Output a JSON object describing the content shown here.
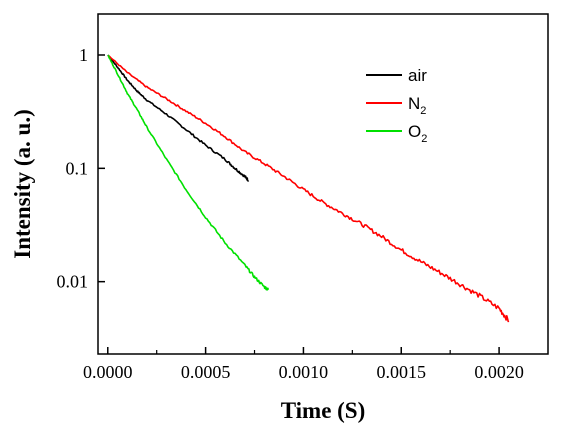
{
  "chart_data": {
    "type": "line",
    "title": "",
    "xlabel": "Time (S)",
    "ylabel": "Intensity (a. u.)",
    "x_scale": "linear",
    "y_scale": "log",
    "xlim": [
      -5e-05,
      0.00225
    ],
    "ylim": [
      0.0023,
      2.3
    ],
    "grid": false,
    "legend_position": "top-right",
    "x_ticks": [
      "0.0000",
      "0.0005",
      "0.0010",
      "0.0015",
      "0.0020"
    ],
    "x_tick_values": [
      0,
      0.0005,
      0.001,
      0.0015,
      0.002
    ],
    "y_ticks": [
      "0.01",
      "0.1",
      "1"
    ],
    "y_tick_values": [
      0.01,
      0.1,
      1
    ],
    "series": [
      {
        "name": "air",
        "name_subscript": "",
        "color": "#000000",
        "x": [
          0,
          5e-05,
          0.0001,
          0.00015,
          0.0002,
          0.0003,
          0.0004,
          0.0005,
          0.0006,
          0.00065,
          0.0007,
          0.00072
        ],
        "y": [
          1.0,
          0.78,
          0.6,
          0.48,
          0.4,
          0.3,
          0.22,
          0.16,
          0.12,
          0.1,
          0.085,
          0.078
        ]
      },
      {
        "name": "N",
        "name_subscript": "2",
        "color": "#ff0000",
        "x": [
          0,
          0.0001,
          0.0002,
          0.0003,
          0.0004,
          0.0005,
          0.0006,
          0.0007,
          0.0008,
          0.0009,
          0.001,
          0.0011,
          0.0012,
          0.0013,
          0.0014,
          0.0015,
          0.0016,
          0.0017,
          0.0018,
          0.0019,
          0.002,
          0.00205
        ],
        "y": [
          1.0,
          0.7,
          0.52,
          0.41,
          0.32,
          0.25,
          0.19,
          0.14,
          0.11,
          0.085,
          0.065,
          0.05,
          0.04,
          0.032,
          0.025,
          0.019,
          0.015,
          0.012,
          0.0095,
          0.0075,
          0.0058,
          0.0045
        ]
      },
      {
        "name": "O",
        "name_subscript": "2",
        "color": "#00e000",
        "x": [
          0,
          5e-05,
          0.0001,
          0.00015,
          0.0002,
          0.0003,
          0.0004,
          0.0005,
          0.0006,
          0.0007,
          0.00075,
          0.0008,
          0.00082
        ],
        "y": [
          1.0,
          0.68,
          0.46,
          0.33,
          0.23,
          0.12,
          0.065,
          0.037,
          0.022,
          0.014,
          0.011,
          0.009,
          0.0085
        ]
      }
    ]
  }
}
